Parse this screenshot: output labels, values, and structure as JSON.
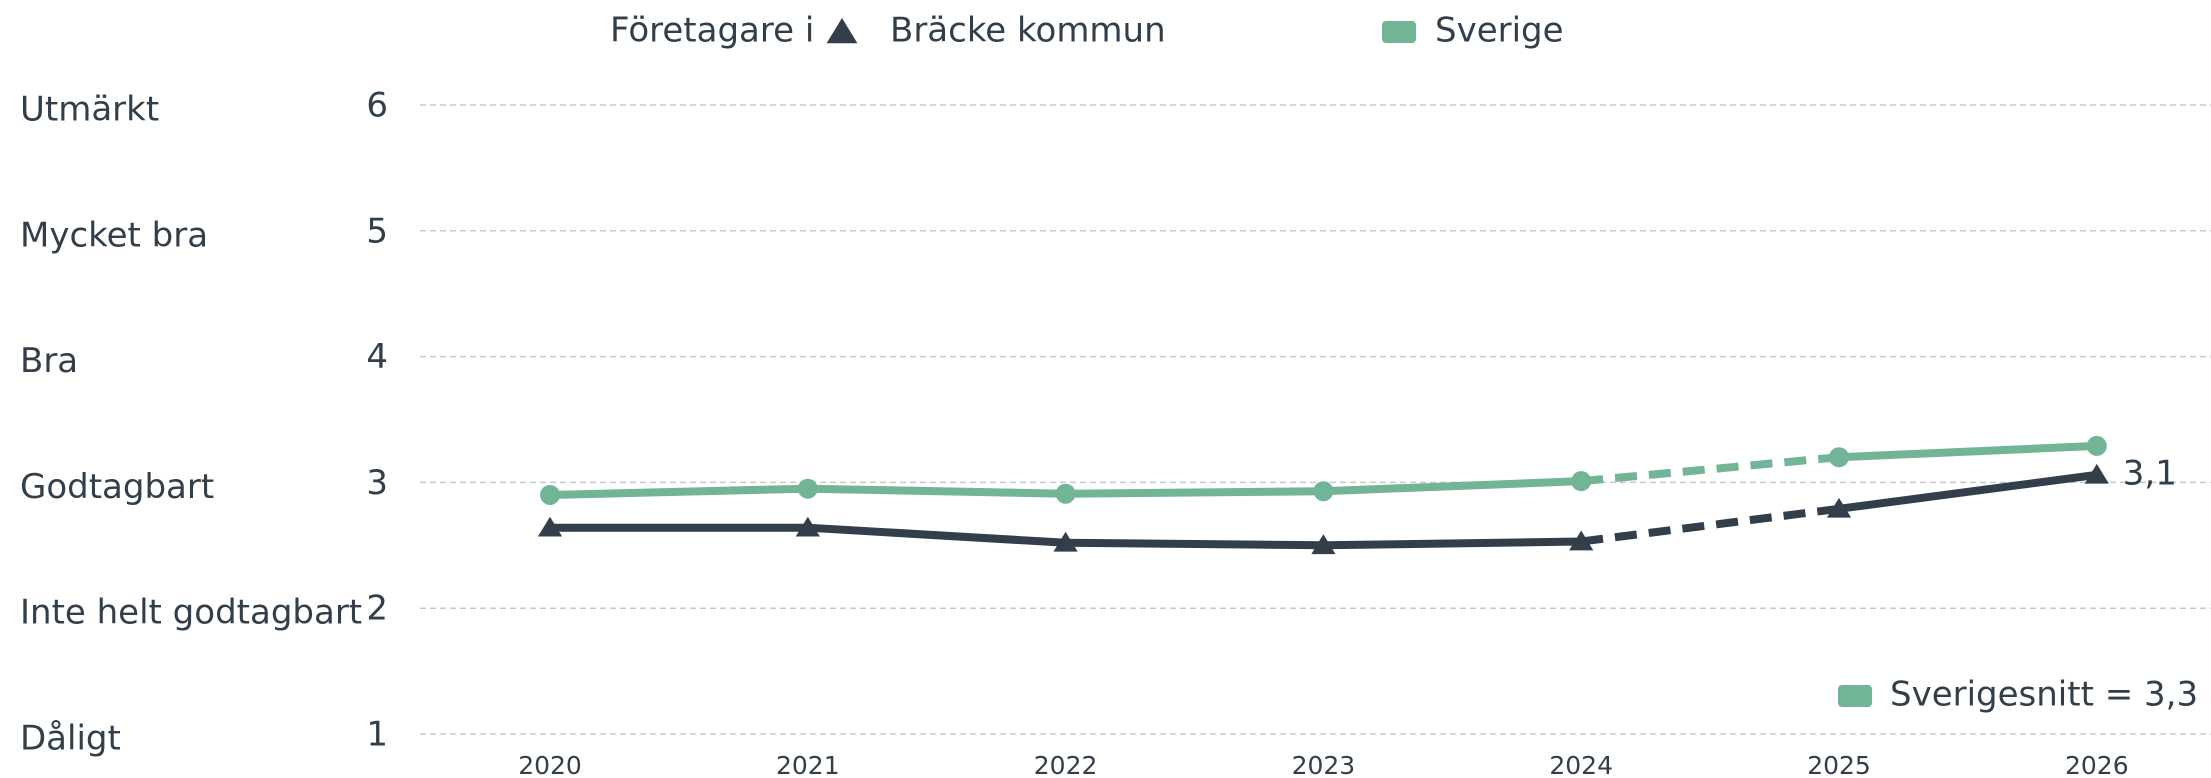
{
  "chart_data": {
    "type": "line",
    "legend_title": "Företagare i",
    "categories": [
      "2020",
      "2021",
      "2022",
      "2023",
      "2024",
      "2025",
      "2026"
    ],
    "series": [
      {
        "name": "Bräcke kommun",
        "color": "#323f4b",
        "marker": "triangle",
        "values": [
          2.64,
          2.64,
          2.52,
          2.5,
          2.53,
          2.79,
          3.06
        ],
        "end_label": "3,1"
      },
      {
        "name": "Sverige",
        "color": "#72b496",
        "marker": "circle",
        "values": [
          2.9,
          2.95,
          2.91,
          2.93,
          3.01,
          3.2,
          3.29
        ]
      }
    ],
    "dashed_segment_start": 4,
    "ylim": [
      1,
      6
    ],
    "yticks": [
      1,
      2,
      3,
      4,
      5,
      6
    ],
    "y_level_labels": [
      "Dåligt",
      "Inte helt godtagbart",
      "Godtagbart",
      "Bra",
      "Mycket bra",
      "Utmärkt"
    ],
    "grid": true,
    "annotation": "Sverigesnitt = 3,3"
  }
}
